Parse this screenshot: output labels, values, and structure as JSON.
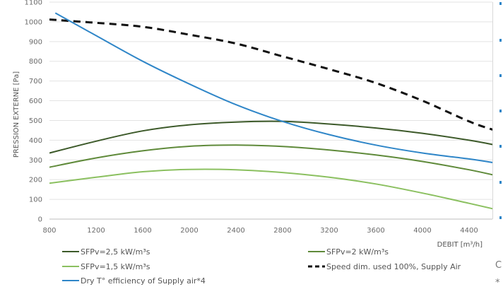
{
  "chart_data": {
    "type": "line",
    "title": "",
    "xlabel": "DEBIT [m³/h]",
    "ylabel": "PRESSION EXTERNE [Pa]",
    "xlim": [
      800,
      4600
    ],
    "ylim": [
      0,
      1100
    ],
    "x_ticks": [
      800,
      1200,
      1600,
      2000,
      2400,
      2800,
      3200,
      3600,
      4000,
      4400
    ],
    "y_ticks": [
      0,
      100,
      200,
      300,
      400,
      500,
      600,
      700,
      800,
      900,
      1000,
      1100
    ],
    "grid": "horizontal",
    "legend_position": "bottom",
    "series": [
      {
        "name": "SFPv=2,5 kW/m³s",
        "color": "#3d5a2a",
        "dash": "solid",
        "x": [
          800,
          1200,
          1600,
          2000,
          2400,
          2800,
          3200,
          3600,
          4000,
          4400,
          4620
        ],
        "y": [
          335,
          395,
          447,
          478,
          492,
          495,
          482,
          462,
          435,
          400,
          376
        ]
      },
      {
        "name": "SFPv=2 kW/m³s",
        "color": "#5f8a3a",
        "dash": "solid",
        "x": [
          800,
          1200,
          1600,
          2000,
          2400,
          2800,
          3200,
          3600,
          4000,
          4400,
          4620
        ],
        "y": [
          263,
          310,
          346,
          369,
          375,
          368,
          350,
          325,
          292,
          250,
          222
        ]
      },
      {
        "name": "SFPv=1,5 kW/m³s",
        "color": "#8bc060",
        "dash": "solid",
        "x": [
          800,
          1200,
          1600,
          2000,
          2400,
          2800,
          3200,
          3600,
          4000,
          4400,
          4620
        ],
        "y": [
          182,
          212,
          240,
          252,
          250,
          236,
          212,
          178,
          132,
          80,
          50
        ]
      },
      {
        "name": "Speed dim. used 100%, Supply Air",
        "color": "#111111",
        "dash": "dashed",
        "x": [
          800,
          1200,
          1600,
          2000,
          2400,
          2800,
          3200,
          3600,
          4000,
          4400,
          4620
        ],
        "y": [
          1012,
          995,
          975,
          935,
          890,
          825,
          760,
          690,
          600,
          495,
          450
        ]
      },
      {
        "name": "Dry T° efficiency of Supply air*4",
        "color": "#2f86c8",
        "dash": "solid",
        "x": [
          850,
          1200,
          1600,
          2000,
          2400,
          2800,
          3200,
          3600,
          4000,
          4400,
          4620
        ],
        "y": [
          1045,
          930,
          800,
          685,
          580,
          495,
          428,
          375,
          335,
          305,
          285
        ]
      }
    ]
  },
  "right_axis": {
    "color": "#2f86c8"
  },
  "side_text": {
    "top": "C",
    "bottom": "*"
  }
}
